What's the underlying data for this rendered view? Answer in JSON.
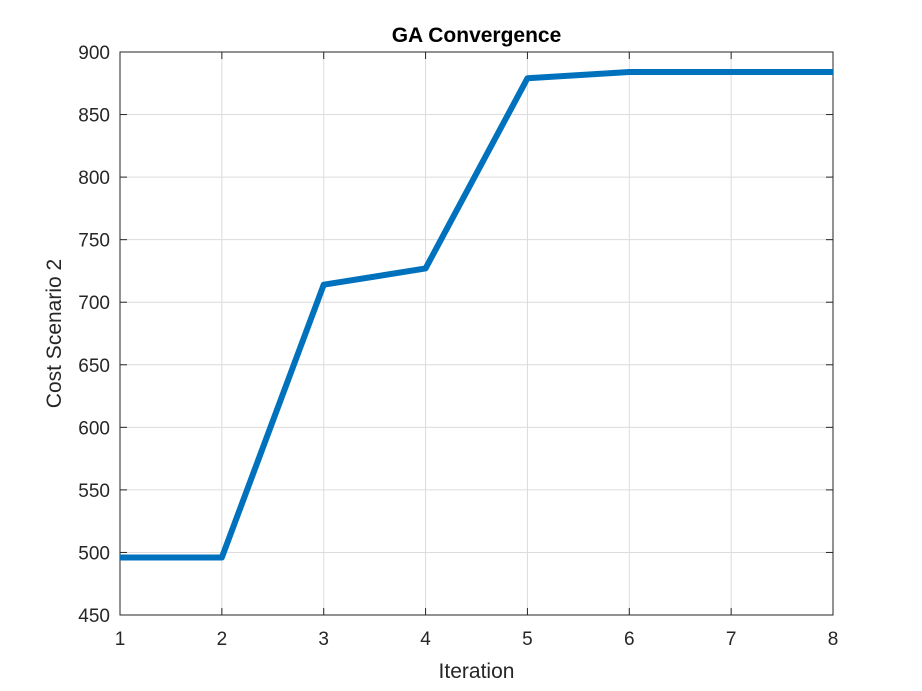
{
  "chart_data": {
    "type": "line",
    "title": "GA Convergence",
    "xlabel": "Iteration",
    "ylabel": "Cost Scenario 2",
    "xlim": [
      1,
      8
    ],
    "ylim": [
      450,
      900
    ],
    "x_ticks": [
      1,
      2,
      3,
      4,
      5,
      6,
      7,
      8
    ],
    "y_ticks": [
      450,
      500,
      550,
      600,
      650,
      700,
      750,
      800,
      850,
      900
    ],
    "grid": true,
    "legend": "none",
    "series": [
      {
        "x": [
          1,
          2,
          3,
          4,
          5,
          6,
          7,
          8
        ],
        "values": [
          496,
          496,
          714,
          727,
          879,
          884,
          884,
          884
        ],
        "color": "#0072BD"
      }
    ]
  }
}
